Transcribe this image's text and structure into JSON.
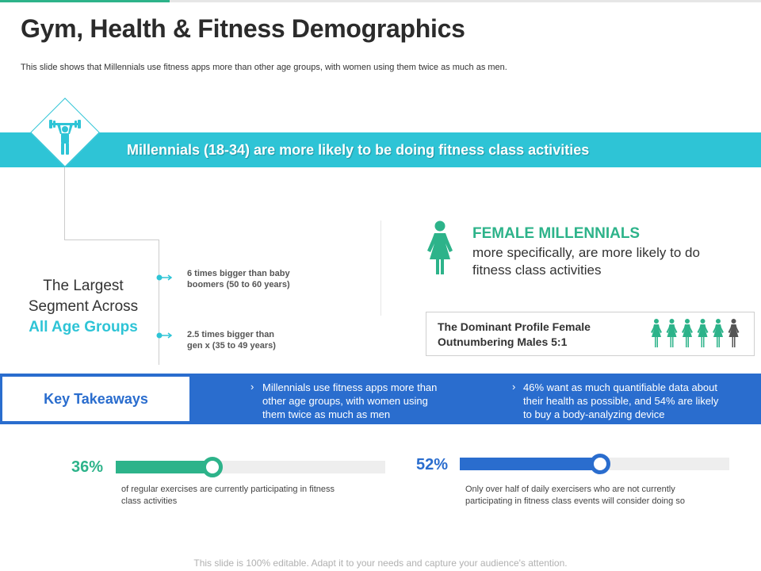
{
  "header": {
    "title": "Gym, Health & Fitness Demographics",
    "subtitle": "This slide shows that Millennials use fitness apps more than other age groups, with women using them twice as much as men."
  },
  "banner": {
    "text": "Millennials (18-34) are more likely to be doing fitness class activities",
    "icon": "weightlifter-icon"
  },
  "segment": {
    "line1": "The Largest",
    "line2": "Segment Across",
    "line3": "All Age Groups"
  },
  "facts": [
    {
      "line1": "6 times bigger than baby",
      "line2": "boomers (50 to 60 years)"
    },
    {
      "line1": "2.5 times bigger than",
      "line2": "gen x (35 to 49 years)"
    }
  ],
  "female": {
    "title": "FEMALE MILLENNIALS",
    "description": "more specifically, are more likely to do fitness class activities"
  },
  "profile": {
    "line1": "The Dominant Profile Female",
    "line2": "Outnumbering Males 5:1",
    "female_count": 5,
    "male_count": 1
  },
  "key_takeaways": {
    "label": "Key Takeaways",
    "items": [
      {
        "line1": "Millennials use fitness apps more than",
        "line2": "other age groups, with women using",
        "line3": "them twice as much as men"
      },
      {
        "line1": "46% want as much quantifiable data about",
        "line2": "their health as possible, and 54% are likely",
        "line3": "to buy a body-analyzing device"
      }
    ]
  },
  "stats": [
    {
      "percent": "36%",
      "value": 36,
      "caption_line1": "of regular exercises are currently participating in fitness",
      "caption_line2": "class activities"
    },
    {
      "percent": "52%",
      "value": 52,
      "caption_line1": "Only over half of daily exercisers who are not currently",
      "caption_line2": "participating in fitness class events will consider doing so"
    }
  ],
  "footer": "This slide is 100% editable. Adapt it to your needs and capture your audience's attention.",
  "colors": {
    "cyan": "#2ec4d6",
    "green": "#2db38a",
    "blue": "#2a6dce",
    "dark": "#2b2b2b",
    "male_gray": "#555555"
  }
}
